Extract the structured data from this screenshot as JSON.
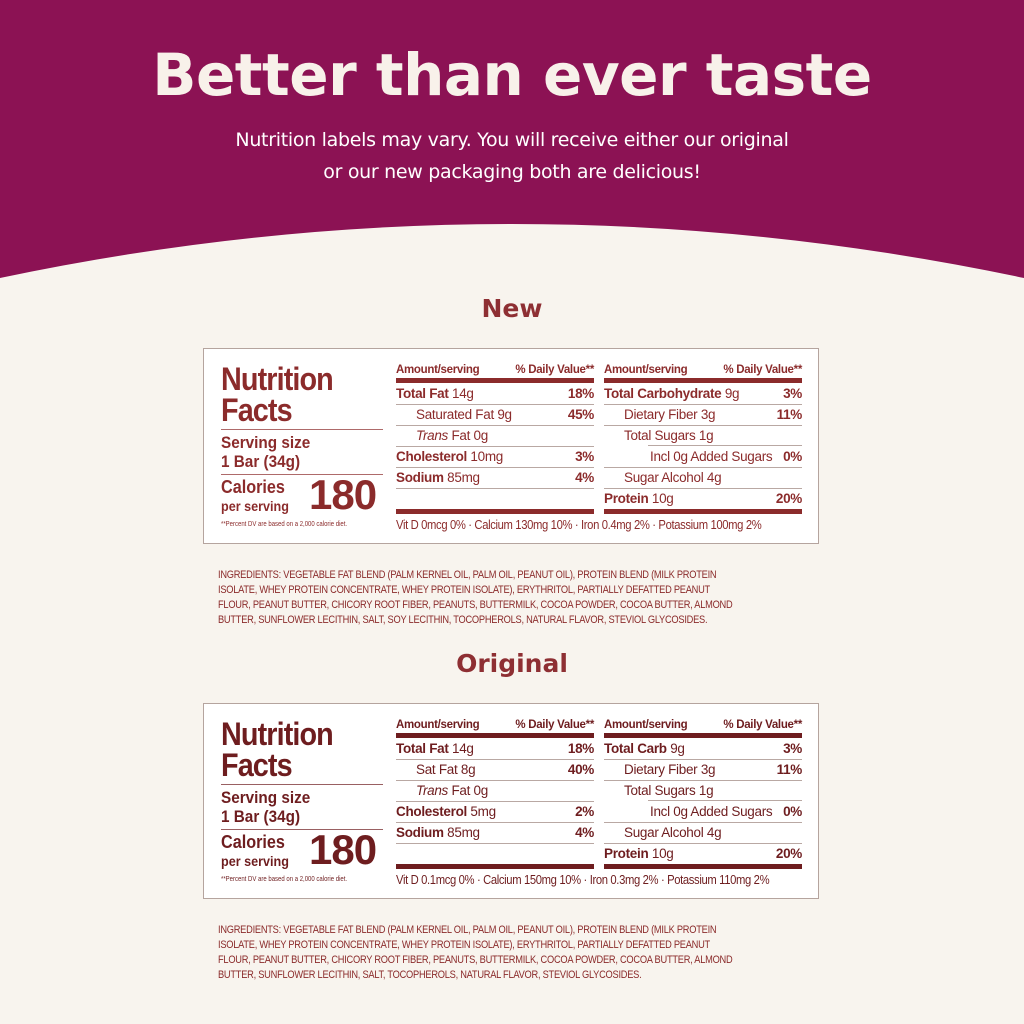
{
  "colors": {
    "banner": "#8c1254",
    "background": "#f8f4ee",
    "label_new": "#8b2b2b",
    "label_original": "#6e1d1f"
  },
  "header": {
    "title": "Better than ever taste",
    "subtitle_lines": [
      "Nutrition labels may vary. You will receive either our original",
      "or our new packaging both are delicious!"
    ]
  },
  "sections": [
    {
      "heading": "New",
      "label": {
        "title_lines": [
          "Nutrition",
          "Facts"
        ],
        "serving_label": "Serving size",
        "serving_value": "1 Bar (34g)",
        "calories_label": "Calories",
        "calories_sub": "per serving",
        "calories": "180",
        "footnote": "**Percent DV are based on a 2,000 calorie diet.",
        "col_header_left": "Amount/serving",
        "col_header_right": "% Daily Value**",
        "left_rows": [
          {
            "bold": "Total Fat",
            "text": " 14g",
            "dv": "18%",
            "indent": 0
          },
          {
            "bold": "",
            "text": "Saturated Fat 9g",
            "dv": "45%",
            "indent": 1
          },
          {
            "bold": "",
            "italic": "Trans",
            "text": " Fat 0g",
            "dv": "",
            "indent": 1
          },
          {
            "bold": "Cholesterol",
            "text": " 10mg",
            "dv": "3%",
            "indent": 0
          },
          {
            "bold": "Sodium",
            "text": " 85mg",
            "dv": "4%",
            "indent": 0
          },
          {
            "bold": "",
            "text": "",
            "dv": "",
            "indent": 0
          }
        ],
        "right_rows": [
          {
            "bold": "Total Carbohydrate",
            "text": " 9g",
            "dv": "3%",
            "indent": 0
          },
          {
            "bold": "",
            "text": "Dietary Fiber 3g",
            "dv": "11%",
            "indent": 1
          },
          {
            "bold": "",
            "text": "Total Sugars 1g",
            "dv": "",
            "indent": 1
          },
          {
            "bold": "",
            "text": "Incl 0g Added Sugars",
            "dv": "0%",
            "indent": 2
          },
          {
            "bold": "",
            "text": "Sugar Alcohol 4g",
            "dv": "",
            "indent": 1
          },
          {
            "bold": "Protein",
            "text": " 10g",
            "dv": "20%",
            "indent": 0
          }
        ],
        "vitamins": "Vit D 0mcg 0% · Calcium 130mg 10% · Iron 0.4mg 2% · Potassium 100mg 2%"
      },
      "ingredients_lines": [
        "INGREDIENTS: VEGETABLE FAT BLEND (PALM KERNEL OIL, PALM OIL, PEANUT OIL), PROTEIN BLEND (MILK PROTEIN",
        "ISOLATE, WHEY PROTEIN CONCENTRATE, WHEY PROTEIN ISOLATE), ERYTHRITOL, PARTIALLY DEFATTED PEANUT",
        "FLOUR, PEANUT BUTTER, CHICORY ROOT FIBER, PEANUTS, BUTTERMILK, COCOA POWDER, COCOA BUTTER, ALMOND",
        "BUTTER, SUNFLOWER LECITHIN, SALT, SOY LECITHIN, TOCOPHEROLS, NATURAL FLAVOR, STEVIOL GLYCOSIDES."
      ]
    },
    {
      "heading": "Original",
      "label": {
        "title_lines": [
          "Nutrition",
          "Facts"
        ],
        "serving_label": "Serving size",
        "serving_value": "1 Bar (34g)",
        "calories_label": "Calories",
        "calories_sub": "per serving",
        "calories": "180",
        "footnote": "**Percent DV are based on a 2,000 calorie diet.",
        "col_header_left": "Amount/serving",
        "col_header_right": "% Daily Value**",
        "left_rows": [
          {
            "bold": "Total Fat",
            "text": " 14g",
            "dv": "18%",
            "indent": 0
          },
          {
            "bold": "",
            "text": "Sat Fat 8g",
            "dv": "40%",
            "indent": 1
          },
          {
            "bold": "",
            "italic": "Trans",
            "text": " Fat 0g",
            "dv": "",
            "indent": 1
          },
          {
            "bold": "Cholesterol",
            "text": " 5mg",
            "dv": "2%",
            "indent": 0
          },
          {
            "bold": "Sodium",
            "text": " 85mg",
            "dv": "4%",
            "indent": 0
          },
          {
            "bold": "",
            "text": "",
            "dv": "",
            "indent": 0
          }
        ],
        "right_rows": [
          {
            "bold": "Total Carb",
            "text": " 9g",
            "dv": "3%",
            "indent": 0
          },
          {
            "bold": "",
            "text": "Dietary Fiber 3g",
            "dv": "11%",
            "indent": 1
          },
          {
            "bold": "",
            "text": "Total Sugars 1g",
            "dv": "",
            "indent": 1
          },
          {
            "bold": "",
            "text": "Incl 0g Added Sugars",
            "dv": "0%",
            "indent": 2
          },
          {
            "bold": "",
            "text": "Sugar Alcohol 4g",
            "dv": "",
            "indent": 1
          },
          {
            "bold": "Protein",
            "text": " 10g",
            "dv": "20%",
            "indent": 0
          }
        ],
        "vitamins": "Vit D 0.1mcg 0% · Calcium 150mg 10% · Iron 0.3mg 2% · Potassium 110mg 2%"
      },
      "ingredients_lines": [
        "INGREDIENTS: VEGETABLE FAT BLEND (PALM KERNEL OIL, PALM OIL, PEANUT OIL), PROTEIN BLEND (MILK PROTEIN",
        "ISOLATE, WHEY PROTEIN CONCENTRATE, WHEY PROTEIN ISOLATE), ERYTHRITOL, PARTIALLY DEFATTED PEANUT",
        "FLOUR, PEANUT BUTTER, CHICORY ROOT FIBER, PEANUTS, BUTTERMILK, COCOA POWDER, COCOA BUTTER, ALMOND",
        "BUTTER, SUNFLOWER LECITHIN, SALT, TOCOPHEROLS, NATURAL FLAVOR, STEVIOL GLYCOSIDES."
      ]
    }
  ]
}
